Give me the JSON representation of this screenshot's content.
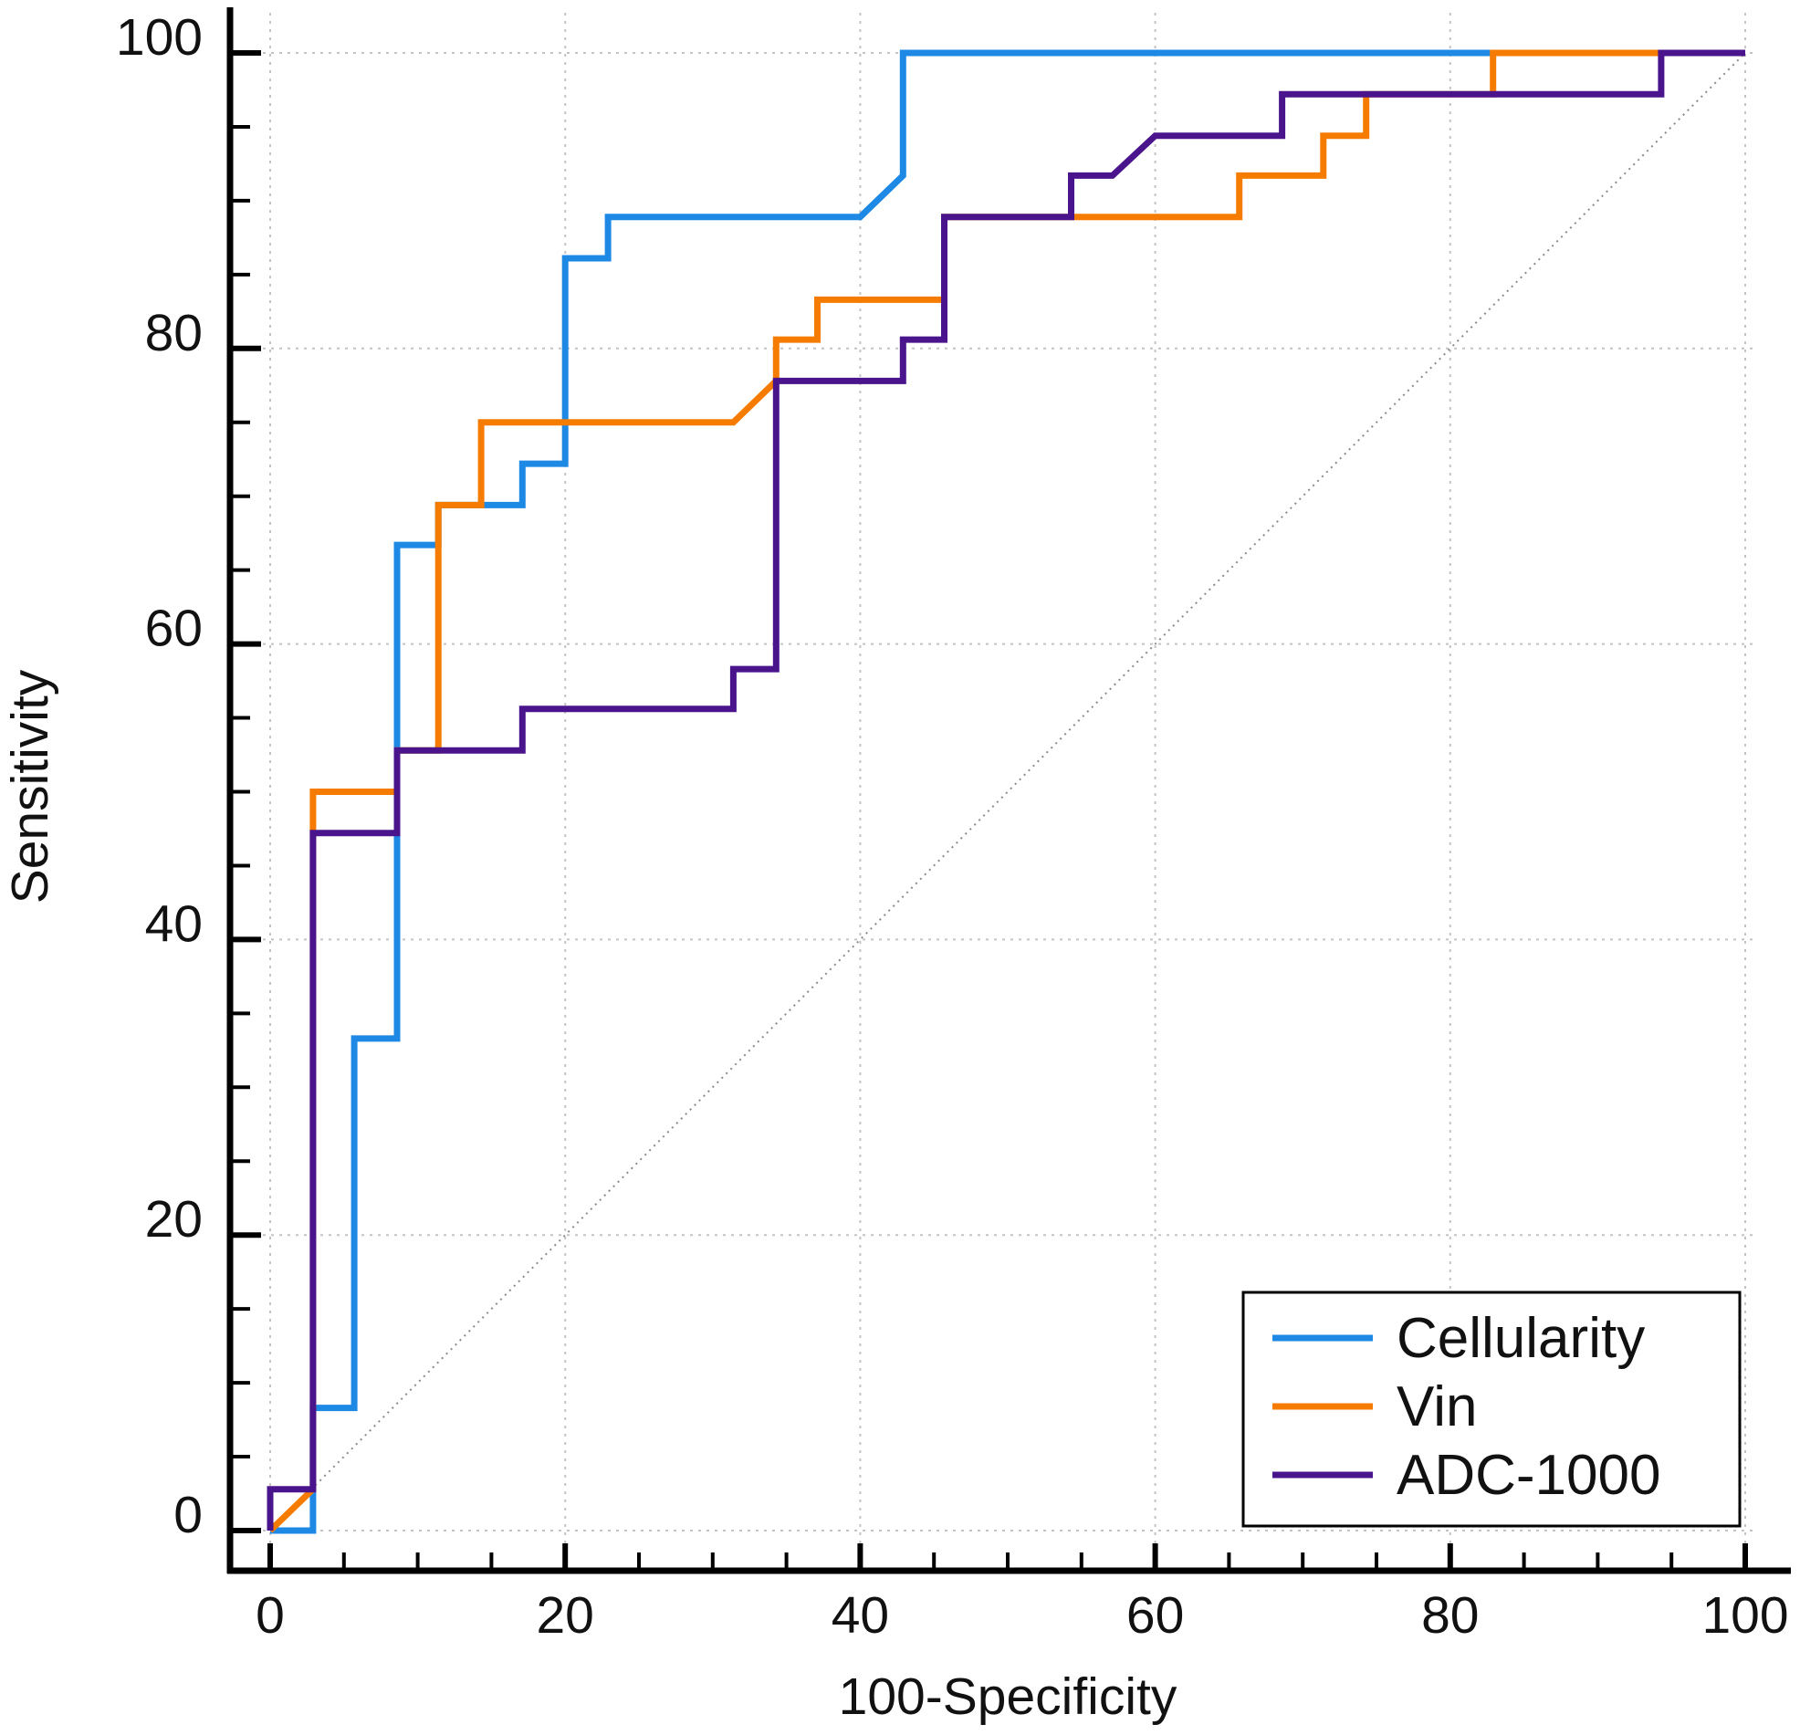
{
  "chart_data": {
    "type": "line",
    "title": "",
    "xlabel": "100-Specificity",
    "ylabel": "Sensitivity",
    "xlim": [
      0,
      100
    ],
    "ylim": [
      0,
      100
    ],
    "x_ticks": [
      "0",
      "20",
      "40",
      "60",
      "80",
      "100"
    ],
    "y_ticks": [
      "0",
      "20",
      "40",
      "60",
      "80",
      "100"
    ],
    "grid": true,
    "legend_position": "bottom-right",
    "reference_line": "diagonal",
    "series": [
      {
        "name": "Cellularity",
        "color": "#1E88E5",
        "x": [
          0,
          2.9,
          2.9,
          5.7,
          5.7,
          8.6,
          8.6,
          11.4,
          11.4,
          17.1,
          17.1,
          20.0,
          20.0,
          22.9,
          22.9,
          40.0,
          42.9,
          42.9,
          100
        ],
        "y": [
          0,
          0,
          8.3,
          8.3,
          33.3,
          33.3,
          66.7,
          66.7,
          69.4,
          69.4,
          72.2,
          72.2,
          86.1,
          86.1,
          88.9,
          88.9,
          91.7,
          100,
          100
        ]
      },
      {
        "name": "Vin",
        "color": "#F57C00",
        "x": [
          0,
          2.9,
          2.9,
          8.6,
          8.6,
          11.4,
          11.4,
          14.3,
          14.3,
          31.4,
          34.3,
          34.3,
          37.1,
          37.1,
          45.7,
          45.7,
          54.3,
          65.7,
          65.7,
          71.4,
          71.4,
          74.3,
          74.3,
          82.9,
          82.9,
          100
        ],
        "y": [
          0,
          2.8,
          50.0,
          50.0,
          52.8,
          52.8,
          69.4,
          69.4,
          75.0,
          75.0,
          77.8,
          80.6,
          80.6,
          83.3,
          83.3,
          88.9,
          88.9,
          88.9,
          91.7,
          91.7,
          94.4,
          94.4,
          97.2,
          97.2,
          100,
          100
        ]
      },
      {
        "name": "ADC-1000",
        "color": "#4A148C",
        "x": [
          0,
          0,
          2.9,
          2.9,
          8.6,
          8.6,
          17.1,
          17.1,
          31.4,
          31.4,
          34.3,
          34.3,
          42.9,
          42.9,
          45.7,
          45.7,
          54.3,
          54.3,
          57.1,
          60.0,
          68.6,
          68.6,
          94.3,
          94.3,
          100
        ],
        "y": [
          0,
          2.8,
          2.8,
          47.2,
          47.2,
          52.8,
          52.8,
          55.6,
          55.6,
          58.3,
          58.3,
          77.8,
          77.8,
          80.6,
          80.6,
          88.9,
          88.9,
          91.7,
          91.7,
          94.4,
          94.4,
          97.2,
          97.2,
          100,
          100
        ]
      }
    ]
  }
}
